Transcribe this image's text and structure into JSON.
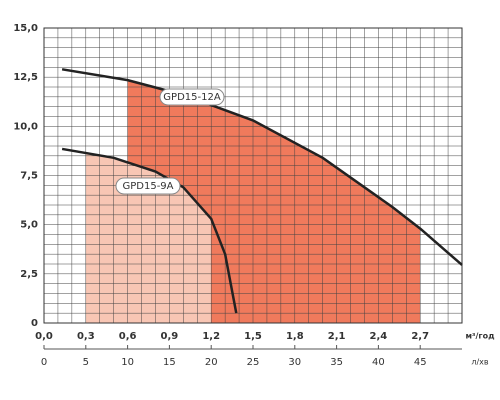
{
  "chart_data": {
    "type": "line",
    "x_label": "м³/год",
    "x2_label": "л/хв",
    "xlim": [
      0,
      3.0
    ],
    "xticks": [
      {
        "value": 0,
        "label": "0,0"
      },
      {
        "value": 0.3,
        "label": "0,3"
      },
      {
        "value": 0.6,
        "label": "0,6"
      },
      {
        "value": 0.9,
        "label": "0,9"
      },
      {
        "value": 1.2,
        "label": "1,2"
      },
      {
        "value": 1.5,
        "label": "1,5"
      },
      {
        "value": 1.8,
        "label": "1,8"
      },
      {
        "value": 2.1,
        "label": "2,1"
      },
      {
        "value": 2.4,
        "label": "2,4"
      },
      {
        "value": 2.7,
        "label": "2,7"
      }
    ],
    "x2lim": [
      0,
      50
    ],
    "x2ticks": [
      0,
      5,
      10,
      15,
      20,
      25,
      30,
      35,
      40,
      45
    ],
    "ylim": [
      0,
      15
    ],
    "yticks": [
      0,
      {
        "value": 2.5,
        "label": "2,5"
      },
      {
        "value": 5,
        "label": "5,0"
      },
      {
        "value": 7.5,
        "label": "7,5"
      },
      {
        "value": 10,
        "label": "10,0"
      },
      {
        "value": 12.5,
        "label": "12,5"
      },
      {
        "value": 15,
        "label": "15,0"
      }
    ],
    "x_minor_step": 0.1,
    "y_minor_step": 0.5,
    "grid": true,
    "series": [
      {
        "name": "GPD15-12A",
        "color": "#222222",
        "fill": "#f07a5c",
        "range": [
          0.6,
          2.7
        ],
        "x": [
          0.13,
          0.6,
          1.0,
          1.5,
          2.0,
          2.5,
          2.7,
          3.0
        ],
        "values": [
          12.9,
          12.35,
          11.6,
          10.3,
          8.4,
          5.9,
          4.8,
          2.95
        ]
      },
      {
        "name": "GPD15-9A",
        "color": "#222222",
        "fill": "#f8c6b4",
        "range": [
          0.3,
          1.2
        ],
        "x": [
          0.13,
          0.5,
          0.8,
          1.0,
          1.2,
          1.3,
          1.38
        ],
        "values": [
          8.85,
          8.4,
          7.7,
          6.9,
          5.3,
          3.5,
          0.5
        ]
      }
    ]
  }
}
